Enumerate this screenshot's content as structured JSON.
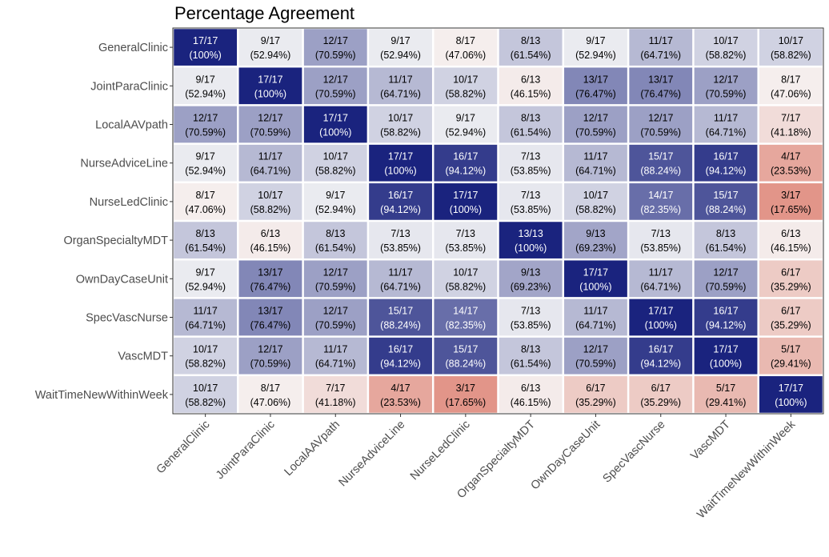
{
  "chart_data": {
    "type": "heatmap",
    "title": "Percentage Agreement",
    "xlabel": "",
    "ylabel": "",
    "rows": [
      "GeneralClinic",
      "JointParaClinic",
      "LocalAAVpath",
      "NurseAdviceLine",
      "NurseLedClinic",
      "OrganSpecialtyMDT",
      "OwnDayCaseUnit",
      "SpecVascNurse",
      "VascMDT",
      "WaitTimeNewWithinWeek"
    ],
    "columns": [
      "GeneralClinic",
      "JointParaClinic",
      "LocalAAVpath",
      "NurseAdviceLine",
      "NurseLedClinic",
      "OrganSpecialtyMDT",
      "OwnDayCaseUnit",
      "SpecVascNurse",
      "VascMDT",
      "WaitTimeNewWithinWeek"
    ],
    "counts": [
      [
        "17/17",
        "9/17",
        "12/17",
        "9/17",
        "8/17",
        "8/13",
        "9/17",
        "11/17",
        "10/17",
        "10/17"
      ],
      [
        "9/17",
        "17/17",
        "12/17",
        "11/17",
        "10/17",
        "6/13",
        "13/17",
        "13/17",
        "12/17",
        "8/17"
      ],
      [
        "12/17",
        "12/17",
        "17/17",
        "10/17",
        "9/17",
        "8/13",
        "12/17",
        "12/17",
        "11/17",
        "7/17"
      ],
      [
        "9/17",
        "11/17",
        "10/17",
        "17/17",
        "16/17",
        "7/13",
        "11/17",
        "15/17",
        "16/17",
        "4/17"
      ],
      [
        "8/17",
        "10/17",
        "9/17",
        "16/17",
        "17/17",
        "7/13",
        "10/17",
        "14/17",
        "15/17",
        "3/17"
      ],
      [
        "8/13",
        "6/13",
        "8/13",
        "7/13",
        "7/13",
        "13/13",
        "9/13",
        "7/13",
        "8/13",
        "6/13"
      ],
      [
        "9/17",
        "13/17",
        "12/17",
        "11/17",
        "10/17",
        "9/13",
        "17/17",
        "11/17",
        "12/17",
        "6/17"
      ],
      [
        "11/17",
        "13/17",
        "12/17",
        "15/17",
        "14/17",
        "7/13",
        "11/17",
        "17/17",
        "16/17",
        "6/17"
      ],
      [
        "10/17",
        "12/17",
        "11/17",
        "16/17",
        "15/17",
        "8/13",
        "12/17",
        "16/17",
        "17/17",
        "5/17"
      ],
      [
        "10/17",
        "8/17",
        "7/17",
        "4/17",
        "3/17",
        "6/13",
        "6/17",
        "6/17",
        "5/17",
        "17/17"
      ]
    ],
    "percentages": [
      [
        "(100%)",
        "(52.94%)",
        "(70.59%)",
        "(52.94%)",
        "(47.06%)",
        "(61.54%)",
        "(52.94%)",
        "(64.71%)",
        "(58.82%)",
        "(58.82%)"
      ],
      [
        "(52.94%)",
        "(100%)",
        "(70.59%)",
        "(64.71%)",
        "(58.82%)",
        "(46.15%)",
        "(76.47%)",
        "(76.47%)",
        "(70.59%)",
        "(47.06%)"
      ],
      [
        "(70.59%)",
        "(70.59%)",
        "(100%)",
        "(58.82%)",
        "(52.94%)",
        "(61.54%)",
        "(70.59%)",
        "(70.59%)",
        "(64.71%)",
        "(41.18%)"
      ],
      [
        "(52.94%)",
        "(64.71%)",
        "(58.82%)",
        "(100%)",
        "(94.12%)",
        "(53.85%)",
        "(64.71%)",
        "(88.24%)",
        "(94.12%)",
        "(23.53%)"
      ],
      [
        "(47.06%)",
        "(58.82%)",
        "(52.94%)",
        "(94.12%)",
        "(100%)",
        "(53.85%)",
        "(58.82%)",
        "(82.35%)",
        "(88.24%)",
        "(17.65%)"
      ],
      [
        "(61.54%)",
        "(46.15%)",
        "(61.54%)",
        "(53.85%)",
        "(53.85%)",
        "(100%)",
        "(69.23%)",
        "(53.85%)",
        "(61.54%)",
        "(46.15%)"
      ],
      [
        "(52.94%)",
        "(76.47%)",
        "(70.59%)",
        "(64.71%)",
        "(58.82%)",
        "(69.23%)",
        "(100%)",
        "(64.71%)",
        "(70.59%)",
        "(35.29%)"
      ],
      [
        "(64.71%)",
        "(76.47%)",
        "(70.59%)",
        "(88.24%)",
        "(82.35%)",
        "(53.85%)",
        "(64.71%)",
        "(100%)",
        "(94.12%)",
        "(35.29%)"
      ],
      [
        "(58.82%)",
        "(70.59%)",
        "(64.71%)",
        "(94.12%)",
        "(88.24%)",
        "(61.54%)",
        "(70.59%)",
        "(94.12%)",
        "(100%)",
        "(29.41%)"
      ],
      [
        "(58.82%)",
        "(47.06%)",
        "(41.18%)",
        "(23.53%)",
        "(17.65%)",
        "(46.15%)",
        "(35.29%)",
        "(35.29%)",
        "(29.41%)",
        "(100%)"
      ]
    ],
    "values": [
      [
        100,
        52.94,
        70.59,
        52.94,
        47.06,
        61.54,
        52.94,
        64.71,
        58.82,
        58.82
      ],
      [
        52.94,
        100,
        70.59,
        64.71,
        58.82,
        46.15,
        76.47,
        76.47,
        70.59,
        47.06
      ],
      [
        70.59,
        70.59,
        100,
        58.82,
        52.94,
        61.54,
        70.59,
        70.59,
        64.71,
        41.18
      ],
      [
        52.94,
        64.71,
        58.82,
        100,
        94.12,
        53.85,
        64.71,
        88.24,
        94.12,
        23.53
      ],
      [
        47.06,
        58.82,
        52.94,
        94.12,
        100,
        53.85,
        58.82,
        82.35,
        88.24,
        17.65
      ],
      [
        61.54,
        46.15,
        61.54,
        53.85,
        53.85,
        100,
        69.23,
        53.85,
        61.54,
        46.15
      ],
      [
        52.94,
        76.47,
        70.59,
        64.71,
        58.82,
        69.23,
        100,
        64.71,
        70.59,
        35.29
      ],
      [
        64.71,
        76.47,
        70.59,
        88.24,
        82.35,
        53.85,
        64.71,
        100,
        94.12,
        35.29
      ],
      [
        58.82,
        70.59,
        64.71,
        94.12,
        88.24,
        61.54,
        70.59,
        94.12,
        100,
        29.41
      ],
      [
        58.82,
        47.06,
        41.18,
        23.53,
        17.65,
        46.15,
        35.29,
        35.29,
        29.41,
        100
      ]
    ],
    "color_scale": {
      "type": "diverging",
      "low": "#d6604d",
      "mid": "#f7f7f7",
      "high": "#1a237e",
      "midpoint": 50,
      "range": [
        0,
        100
      ]
    },
    "legend": "none",
    "grid": false
  }
}
